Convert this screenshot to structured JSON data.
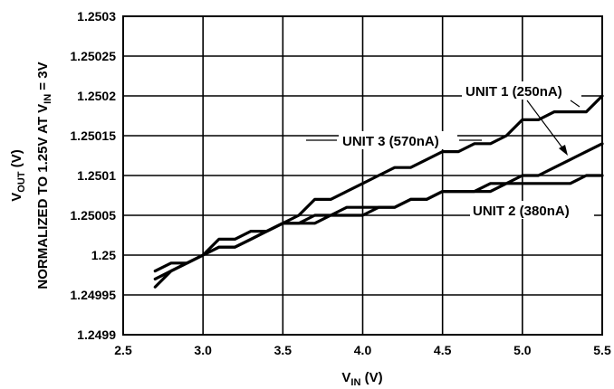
{
  "chart_data": {
    "type": "line",
    "xlabel": {
      "main": "V",
      "sub": "IN",
      "suffix": " (V)"
    },
    "ylabel": {
      "line1": {
        "main": "V",
        "sub": "OUT",
        "suffix": " (V)"
      },
      "line2": {
        "main": "NORMALIZED TO 1.25V AT V",
        "sub": "IN",
        "suffix": " = 3V"
      }
    },
    "xlim": [
      2.5,
      5.5
    ],
    "ylim": [
      1.2499,
      1.2503
    ],
    "x_ticks": [
      2.5,
      3.0,
      3.5,
      4.0,
      4.5,
      5.0,
      5.5
    ],
    "x_tick_labels": [
      "2.5",
      "3.0",
      "3.5",
      "4.0",
      "4.5",
      "5.0",
      "5.5"
    ],
    "y_ticks": [
      1.2503,
      1.25025,
      1.2502,
      1.25015,
      1.2501,
      1.25005,
      1.25,
      1.24995,
      1.2499
    ],
    "y_tick_labels": [
      "1.2503",
      "1.25025",
      "1.2502",
      "1.25015",
      "1.2501",
      "1.25005",
      "1.25",
      "1.24995",
      "1.2499"
    ],
    "grid": true,
    "series": [
      {
        "name": "UNIT 1 (250nA)",
        "x": [
          2.7,
          2.8,
          2.9,
          3.0,
          3.1,
          3.2,
          3.3,
          3.4,
          3.5,
          3.6,
          3.7,
          3.8,
          3.9,
          4.0,
          4.1,
          4.2,
          4.3,
          4.4,
          4.5,
          4.6,
          4.7,
          4.8,
          4.9,
          5.0,
          5.1,
          5.2,
          5.3,
          5.4,
          5.5
        ],
        "y": [
          1.24996,
          1.24998,
          1.24999,
          1.25,
          1.25001,
          1.25001,
          1.25002,
          1.25003,
          1.25004,
          1.25004,
          1.25005,
          1.25005,
          1.25006,
          1.25006,
          1.25006,
          1.25006,
          1.25007,
          1.25007,
          1.25008,
          1.25008,
          1.25008,
          1.25009,
          1.25009,
          1.2501,
          1.2501,
          1.25011,
          1.25012,
          1.25013,
          1.25014
        ]
      },
      {
        "name": "UNIT 2 (380nA)",
        "x": [
          2.7,
          2.8,
          2.9,
          3.0,
          3.1,
          3.2,
          3.3,
          3.4,
          3.5,
          3.6,
          3.7,
          3.8,
          3.9,
          4.0,
          4.1,
          4.2,
          4.3,
          4.4,
          4.5,
          4.6,
          4.7,
          4.8,
          4.9,
          5.0,
          5.1,
          5.2,
          5.3,
          5.4,
          5.5
        ],
        "y": [
          1.24998,
          1.24999,
          1.24999,
          1.25,
          1.25002,
          1.25002,
          1.25003,
          1.25003,
          1.25004,
          1.25004,
          1.25004,
          1.25005,
          1.25005,
          1.25005,
          1.25006,
          1.25006,
          1.25007,
          1.25007,
          1.25008,
          1.25008,
          1.25008,
          1.25008,
          1.25009,
          1.25009,
          1.25009,
          1.25009,
          1.25009,
          1.2501,
          1.2501
        ]
      },
      {
        "name": "UNIT 3 (570nA)",
        "x": [
          2.7,
          2.8,
          2.9,
          3.0,
          3.1,
          3.2,
          3.3,
          3.4,
          3.5,
          3.6,
          3.7,
          3.8,
          3.9,
          4.0,
          4.1,
          4.2,
          4.3,
          4.4,
          4.5,
          4.6,
          4.7,
          4.8,
          4.9,
          5.0,
          5.1,
          5.2,
          5.3,
          5.4,
          5.5
        ],
        "y": [
          1.24997,
          1.24998,
          1.24999,
          1.25,
          1.25001,
          1.25001,
          1.25002,
          1.25003,
          1.25004,
          1.25005,
          1.25007,
          1.25007,
          1.25008,
          1.25009,
          1.2501,
          1.25011,
          1.25011,
          1.25012,
          1.25013,
          1.25013,
          1.25014,
          1.25014,
          1.25015,
          1.25017,
          1.25017,
          1.25018,
          1.25018,
          1.25018,
          1.2502
        ]
      }
    ],
    "annotations": [
      {
        "text": "UNIT 1 (250nA)",
        "series": 0
      },
      {
        "text": "UNIT 3 (570nA)",
        "series": 2
      },
      {
        "text": "UNIT 2 (380nA)",
        "series": 1
      }
    ],
    "line_color": "#000000",
    "grid_color": "#000000"
  }
}
